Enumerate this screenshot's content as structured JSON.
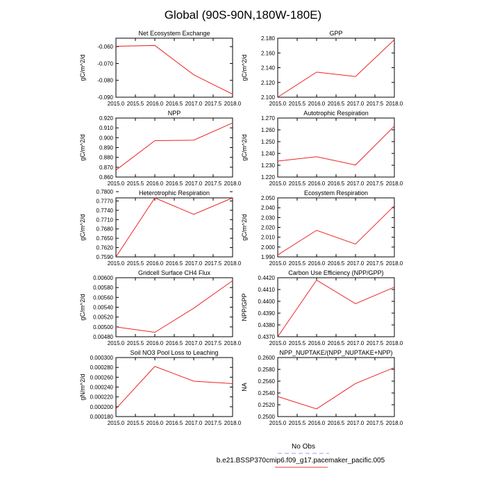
{
  "figure": {
    "title": "Global (90S-90N,180W-180E)",
    "legend": {
      "entries": [
        {
          "label": "No Obs",
          "color": "#9999ee",
          "style": "dashed"
        },
        {
          "label": "b.e21.BSSP370cmip6.f09_g17.pacemaker_pacific.005",
          "color": "#ee3333",
          "style": "solid"
        }
      ]
    }
  },
  "colors": {
    "series": "#ee2222",
    "axis": "#000000"
  },
  "chart_data": [
    {
      "type": "line",
      "title": "Net Ecosystem Exchange",
      "ylabel": "gC/m^2/d",
      "x": [
        2015,
        2016,
        2017,
        2018
      ],
      "values": [
        -0.0598,
        -0.0593,
        -0.0767,
        -0.0882
      ],
      "xlim": [
        2015,
        2018
      ],
      "ylim": [
        -0.09,
        -0.055
      ],
      "xticks": [
        "2015.0",
        "2015.5",
        "2016.0",
        "2016.5",
        "2017.0",
        "2017.5",
        "2018.0"
      ],
      "yticks": [
        "-0.060",
        "-0.070",
        "-0.080",
        "-0.090"
      ]
    },
    {
      "type": "line",
      "title": "GPP",
      "ylabel": "gC/m^2/d",
      "x": [
        2015,
        2016,
        2017,
        2018
      ],
      "values": [
        2.1,
        2.134,
        2.128,
        2.178
      ],
      "xlim": [
        2015,
        2018
      ],
      "ylim": [
        2.1,
        2.18
      ],
      "xticks": [
        "2015.0",
        "2015.5",
        "2016.0",
        "2016.5",
        "2017.0",
        "2017.5",
        "2018.0"
      ],
      "yticks": [
        "2.100",
        "2.120",
        "2.140",
        "2.160",
        "2.180"
      ]
    },
    {
      "type": "line",
      "title": "NPP",
      "ylabel": "gC/m^2/d",
      "x": [
        2015,
        2016,
        2017,
        2018
      ],
      "values": [
        0.867,
        0.897,
        0.8975,
        0.915
      ],
      "xlim": [
        2015,
        2018
      ],
      "ylim": [
        0.86,
        0.92
      ],
      "xticks": [
        "2015.0",
        "2015.5",
        "2016.0",
        "2016.5",
        "2017.0",
        "2017.5",
        "2018.0"
      ],
      "yticks": [
        "0.860",
        "0.870",
        "0.880",
        "0.890",
        "0.900",
        "0.910",
        "0.920"
      ]
    },
    {
      "type": "line",
      "title": "Autotrophic Respiration",
      "ylabel": "gC/m^2/d",
      "x": [
        2015,
        2016,
        2017,
        2018
      ],
      "values": [
        1.2335,
        1.2372,
        1.2302,
        1.2632
      ],
      "xlim": [
        2015,
        2018
      ],
      "ylim": [
        1.22,
        1.27
      ],
      "xticks": [
        "2015.0",
        "2015.5",
        "2016.0",
        "2016.5",
        "2017.0",
        "2017.5",
        "2018.0"
      ],
      "yticks": [
        "1.220",
        "1.230",
        "1.240",
        "1.250",
        "1.260",
        "1.270"
      ]
    },
    {
      "type": "line",
      "title": "Heterotrophic Respiration",
      "ylabel": "gC/m^2/d",
      "x": [
        2015,
        2016,
        2017,
        2018
      ],
      "values": [
        0.759,
        0.778,
        0.7727,
        0.778
      ],
      "xlim": [
        2015,
        2018
      ],
      "ylim": [
        0.759,
        0.778
      ],
      "xticks": [
        "2015.0",
        "2015.5",
        "2016.0",
        "2016.5",
        "2017.0",
        "2017.5",
        "2018.0"
      ],
      "yticks": [
        "0.7590",
        "0.7620",
        "0.7650",
        "0.7680",
        "0.7710",
        "0.7740",
        "0.7770",
        "0.7800"
      ]
    },
    {
      "type": "line",
      "title": "Ecosystem Respiration",
      "ylabel": "gC/m^2/d",
      "x": [
        2015,
        2016,
        2017,
        2018
      ],
      "values": [
        1.992,
        2.017,
        2.003,
        2.042
      ],
      "xlim": [
        2015,
        2018
      ],
      "ylim": [
        1.99,
        2.05
      ],
      "xticks": [
        "2015.0",
        "2015.5",
        "2016.0",
        "2016.5",
        "2017.0",
        "2017.5",
        "2018.0"
      ],
      "yticks": [
        "1.990",
        "2.000",
        "2.010",
        "2.020",
        "2.030",
        "2.040",
        "2.050"
      ]
    },
    {
      "type": "line",
      "title": "Gridcell Surface CH4 Flux",
      "ylabel": "gC/m^2/d",
      "x": [
        2015,
        2016,
        2017,
        2018
      ],
      "values": [
        0.005,
        0.00489,
        0.00538,
        0.00594
      ],
      "xlim": [
        2015,
        2018
      ],
      "ylim": [
        0.0048,
        0.006
      ],
      "xticks": [
        "2015.0",
        "2015.5",
        "2016.0",
        "2016.5",
        "2017.0",
        "2017.5",
        "2018.0"
      ],
      "yticks": [
        "0.00480",
        "0.00500",
        "0.00520",
        "0.00540",
        "0.00560",
        "0.00580",
        "0.00600"
      ]
    },
    {
      "type": "line",
      "title": "Carbon Use Efficiency (NPP/GPP)",
      "ylabel": "NPP/GPP",
      "x": [
        2015,
        2016,
        2017,
        2018
      ],
      "values": [
        0.437,
        0.4418,
        0.4398,
        0.4412
      ],
      "xlim": [
        2015,
        2018
      ],
      "ylim": [
        0.437,
        0.442
      ],
      "xticks": [
        "2015.0",
        "2015.5",
        "2016.0",
        "2016.5",
        "2017.0",
        "2017.5",
        "2018.0"
      ],
      "yticks": [
        "0.4370",
        "0.4380",
        "0.4390",
        "0.4400",
        "0.4410",
        "0.4420"
      ]
    },
    {
      "type": "line",
      "title": "Soil NO3 Pool Loss to Leaching",
      "ylabel": "gN/m^2/d",
      "x": [
        2015,
        2016,
        2017,
        2018
      ],
      "values": [
        0.000196,
        0.000282,
        0.000252,
        0.000247
      ],
      "xlim": [
        2015,
        2018
      ],
      "ylim": [
        0.00018,
        0.0003
      ],
      "xticks": [
        "2015.0",
        "2015.5",
        "2016.0",
        "2016.5",
        "2017.0",
        "2017.5",
        "2018.0"
      ],
      "yticks": [
        "0.000180",
        "0.000200",
        "0.000220",
        "0.000240",
        "0.000260",
        "0.000280",
        "0.000300"
      ]
    },
    {
      "type": "line",
      "title": "NPP_NUPTAKE/(NPP_NUPTAKE+NPP)",
      "ylabel": "NA",
      "x": [
        2015,
        2016,
        2017,
        2018
      ],
      "values": [
        0.2534,
        0.2513,
        0.2556,
        0.2583
      ],
      "xlim": [
        2015,
        2018
      ],
      "ylim": [
        0.25,
        0.26
      ],
      "xticks": [
        "2015.0",
        "2015.5",
        "2016.0",
        "2016.5",
        "2017.0",
        "2017.5",
        "2018.0"
      ],
      "yticks": [
        "0.2500",
        "0.2520",
        "0.2540",
        "0.2560",
        "0.2580",
        "0.2600"
      ]
    }
  ]
}
